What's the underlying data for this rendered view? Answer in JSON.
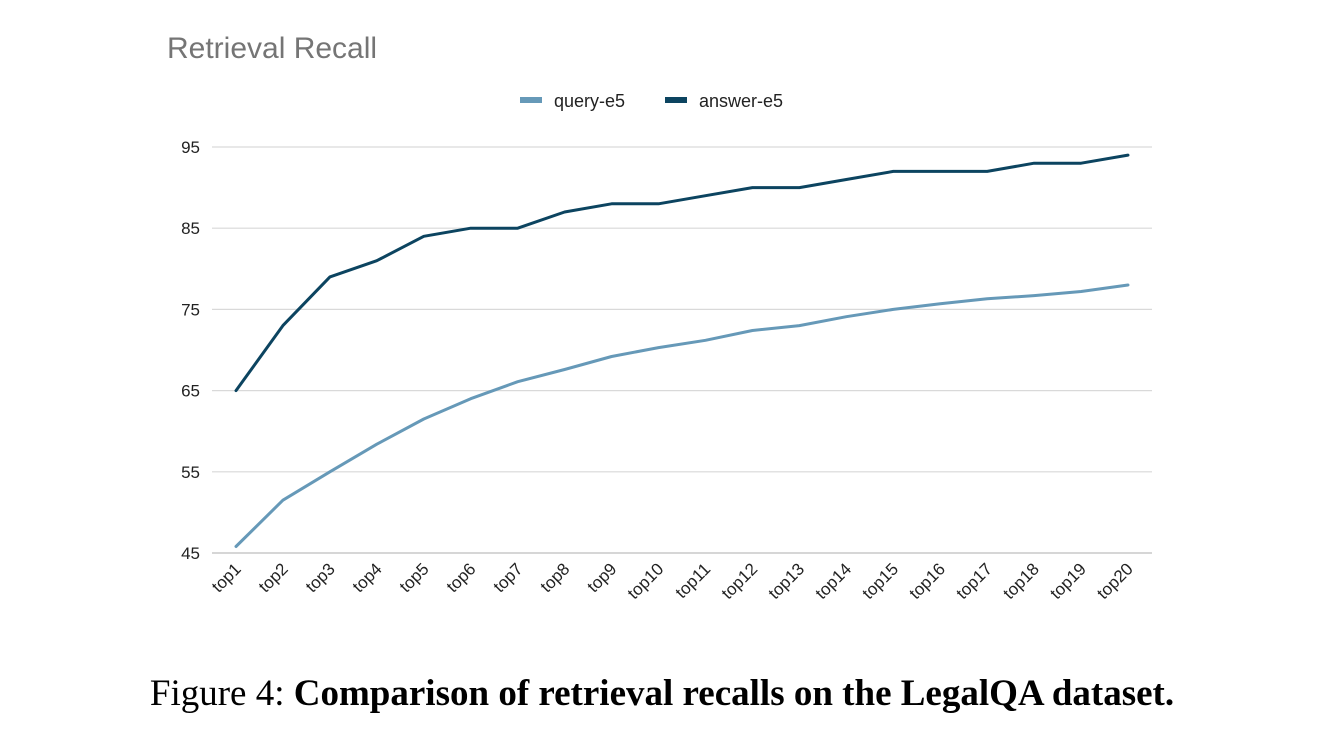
{
  "caption": {
    "label": "Figure 4:",
    "text": "Comparison of retrieval recalls on the LegalQA dataset."
  },
  "chart_data": {
    "type": "line",
    "title": "Retrieval Recall",
    "xlabel": "",
    "ylabel": "",
    "ylim": [
      45,
      95
    ],
    "yticks": [
      45,
      55,
      65,
      75,
      85,
      95
    ],
    "grid": true,
    "legend_position": "top-center",
    "categories": [
      "top1",
      "top2",
      "top3",
      "top4",
      "top5",
      "top6",
      "top7",
      "top8",
      "top9",
      "top10",
      "top11",
      "top12",
      "top13",
      "top14",
      "top15",
      "top16",
      "top17",
      "top18",
      "top19",
      "top20"
    ],
    "series": [
      {
        "name": "query-e5",
        "color": "#6699b8",
        "values": [
          45.8,
          51.5,
          55.0,
          58.4,
          61.5,
          64.0,
          66.1,
          67.6,
          69.2,
          70.3,
          71.2,
          72.4,
          73.0,
          74.1,
          75.0,
          75.7,
          76.3,
          76.7,
          77.2,
          78.0
        ]
      },
      {
        "name": "answer-e5",
        "color": "#0c4460",
        "values": [
          65.0,
          73.0,
          79.0,
          81.0,
          84.0,
          85.0,
          85.0,
          87.0,
          88.0,
          88.0,
          89.0,
          90.0,
          90.0,
          91.0,
          92.0,
          92.0,
          92.0,
          93.0,
          93.0,
          94.0
        ]
      }
    ]
  }
}
